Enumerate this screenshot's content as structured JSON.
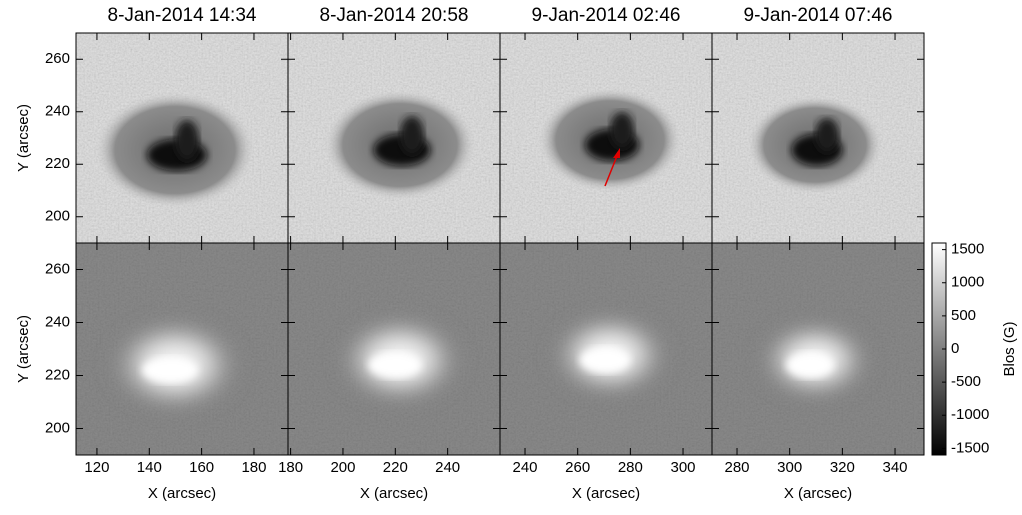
{
  "chart_data": {
    "type": "image-grid",
    "titles": [
      "8-Jan-2014 14:34",
      "8-Jan-2014 20:58",
      "9-Jan-2014 02:46",
      "9-Jan-2014 07:46"
    ],
    "xlabel": "X (arcsec)",
    "ylabel": "Y (arcsec)",
    "columns": [
      {
        "xlim": [
          112,
          193
        ],
        "xticks": [
          120,
          140,
          160,
          180
        ]
      },
      {
        "xlim": [
          179,
          260
        ],
        "xticks": [
          180,
          200,
          220,
          240
        ]
      },
      {
        "xlim": [
          230.5,
          311
        ],
        "xticks": [
          240,
          260,
          280,
          300
        ]
      },
      {
        "xlim": [
          270.5,
          351
        ],
        "xticks": [
          280,
          300,
          320,
          340
        ]
      }
    ],
    "ylim": [
      190,
      270
    ],
    "yticks": [
      200,
      220,
      240,
      260
    ],
    "colorbar": {
      "label": "Blos (G)",
      "lim": [
        -1600,
        1600
      ],
      "ticks": [
        -1500,
        -1000,
        -500,
        0,
        500,
        1000,
        1500
      ]
    }
  }
}
